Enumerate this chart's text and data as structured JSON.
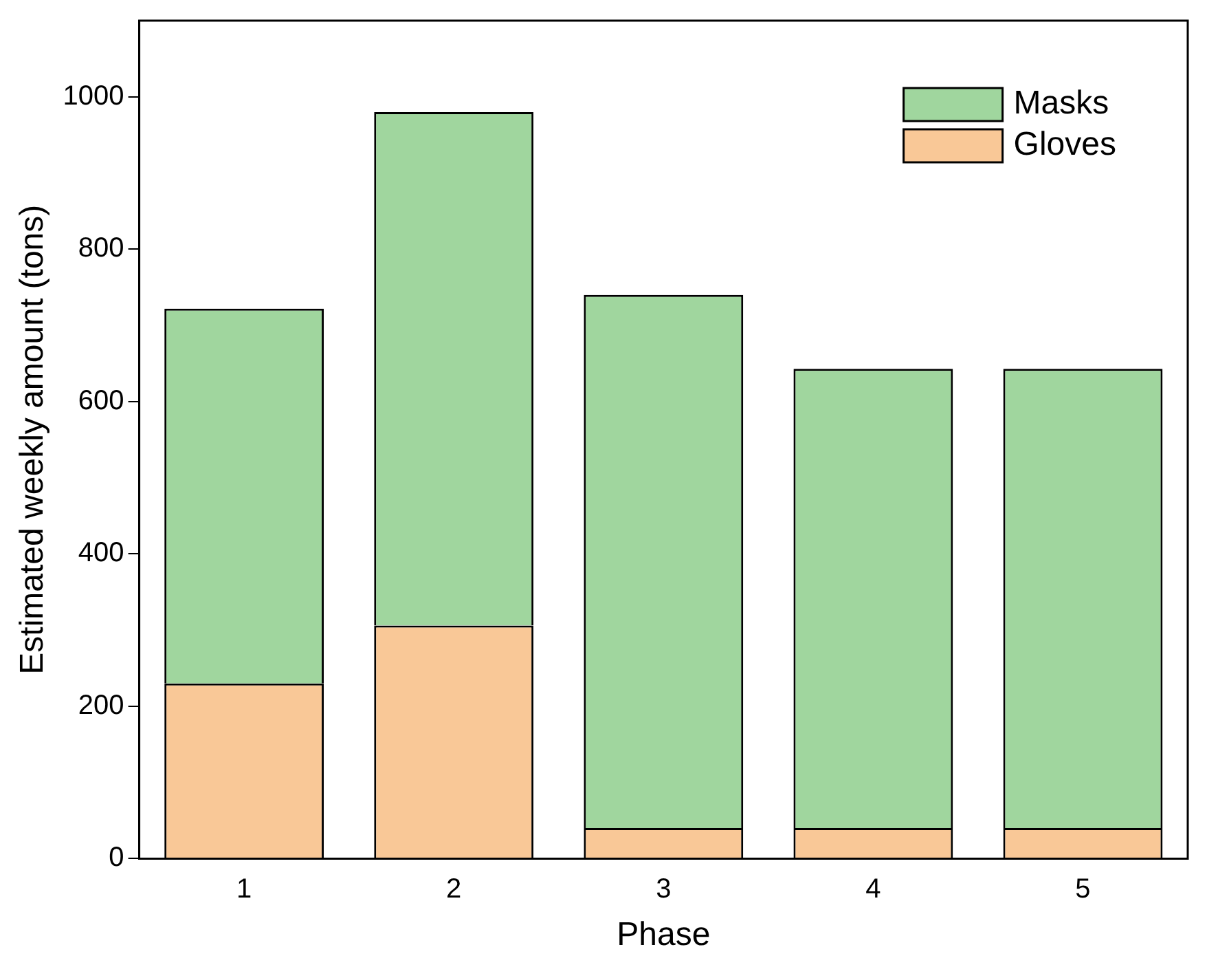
{
  "chart_data": {
    "type": "bar",
    "stacked": true,
    "xlabel": "Phase",
    "ylabel": "Estimated weekly amount (tons)",
    "categories": [
      "1",
      "2",
      "3",
      "4",
      "5"
    ],
    "series": [
      {
        "name": "Gloves",
        "color": "#f9c897",
        "values": [
          230,
          306,
          40,
          40,
          40
        ]
      },
      {
        "name": "Masks",
        "color": "#a0d69e",
        "values": [
          492,
          674,
          700,
          603,
          603
        ]
      }
    ],
    "ylim": [
      0,
      1100
    ],
    "yticks": [
      0,
      200,
      400,
      600,
      800,
      1000
    ],
    "grid": false,
    "legend": "top right"
  }
}
